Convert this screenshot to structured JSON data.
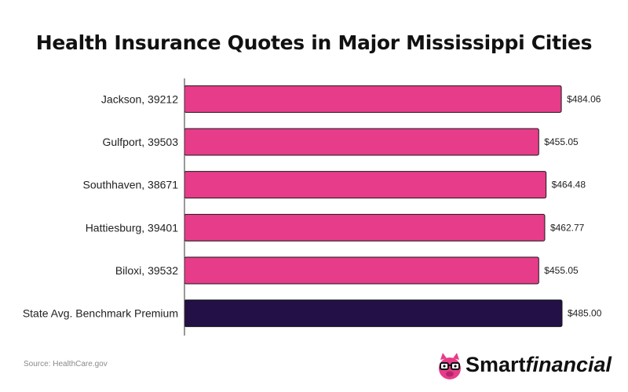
{
  "chart_data": {
    "type": "bar",
    "orientation": "horizontal",
    "title": "Health Insurance Quotes in Major Mississippi Cities",
    "categories": [
      "Jackson, 39212",
      "Gulfport, 39503",
      "Southhaven, 38671",
      "Hattiesburg, 39401",
      "Biloxi, 39532",
      "State Avg. Benchmark Premium"
    ],
    "values": [
      484.06,
      455.05,
      464.48,
      462.77,
      455.05,
      485.0
    ],
    "value_labels": [
      "$484.06",
      "$455.05",
      "$464.48",
      "$462.77",
      "$455.05",
      "$485.00"
    ],
    "xlim": [
      0,
      485
    ],
    "grid": false,
    "colors": {
      "city_bar": "#e63c8a",
      "benchmark_bar": "#231046",
      "bar_outline": "#1a1a1a",
      "axis": "#333333"
    }
  },
  "source": "Source: HealthCare.gov",
  "logo": {
    "part1": "Smart",
    "part2": "financial",
    "pig_color": "#e63c8a"
  }
}
